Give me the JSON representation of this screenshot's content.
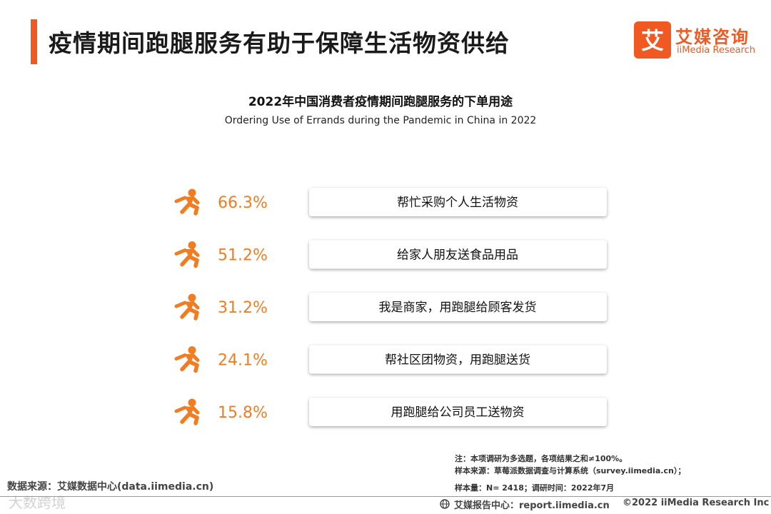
{
  "header": {
    "title": "疫情期间跑腿服务有助于保障生活物资供给",
    "accent_color": "#f05a22"
  },
  "logo": {
    "cn": "艾媒咨询",
    "en": "iiMedia Research",
    "mark_char": "艾"
  },
  "chart_data": {
    "type": "bar",
    "title": "2022年中国消费者疫情期间跑腿服务的下单用途",
    "subtitle": "Ordering Use of Errands during the Pandemic in China in 2022",
    "categories": [
      "帮忙采购个人生活物资",
      "给家人朋友送食品用品",
      "我是商家，用跑腿给顾客发货",
      "帮社区团物资，用跑腿送货",
      "用跑腿给公司员工送物资"
    ],
    "values": [
      66.3,
      51.2,
      31.2,
      24.1,
      15.8
    ],
    "value_labels": [
      "66.3%",
      "51.2%",
      "31.2%",
      "24.1%",
      "15.8%"
    ],
    "unit": "%",
    "icon": "running-person-icon",
    "value_color": "#f07d22"
  },
  "notes": [
    "注：本项调研为多选题，各项结果之和≠100%。",
    "样本来源：草莓派数据调查与计算系统（survey.iimedia.cn）；",
    "样本量：N= 2418；调研时间：2022年7月"
  ],
  "source": "数据来源：艾媒数据中心(data.iimedia.cn)",
  "footer": {
    "report": "艾媒报告中心：report.iimedia.cn",
    "copyright": "©2022  iiMedia Research  Inc"
  },
  "watermark": "大数跨境"
}
